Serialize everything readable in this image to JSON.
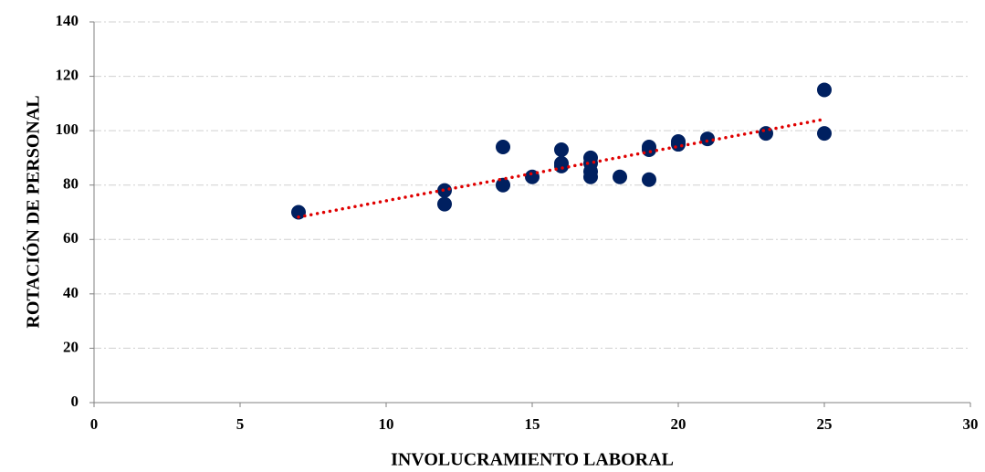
{
  "chart_data": {
    "type": "scatter",
    "x_label": "INVOLUCRAMIENTO LABORAL",
    "y_label": "ROTACIÓN DE PERSONAL",
    "x": [
      7,
      12,
      12,
      14,
      14,
      15,
      16,
      16,
      16,
      17,
      17,
      17,
      17,
      18,
      19,
      19,
      19,
      20,
      20,
      21,
      23,
      25,
      25
    ],
    "values": [
      70,
      78,
      73,
      94,
      80,
      83,
      93,
      88,
      87,
      90,
      88,
      85,
      83,
      83,
      94,
      93,
      82,
      96,
      95,
      97,
      99,
      115,
      99
    ],
    "color": "#002060",
    "trendline": true,
    "trendline_color": "#e00000",
    "xlim": [
      0,
      30
    ],
    "xticks": [
      0,
      5,
      10,
      15,
      20,
      25,
      30
    ],
    "ylim": [
      0,
      140
    ],
    "yticks": [
      0,
      20,
      40,
      60,
      80,
      100,
      120,
      140
    ],
    "grid": true
  }
}
